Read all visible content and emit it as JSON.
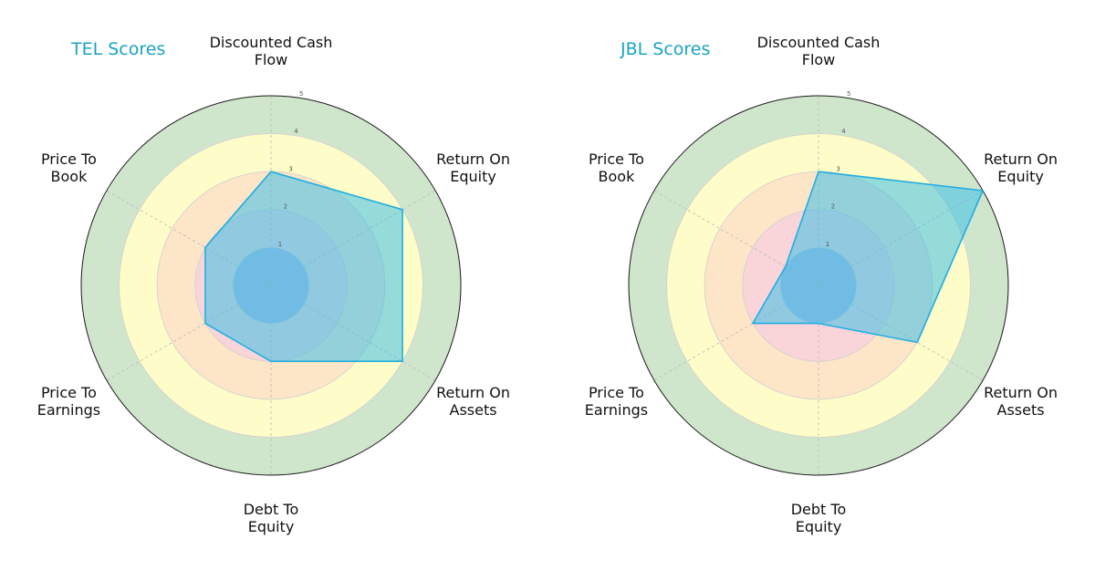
{
  "chart_data": [
    {
      "type": "radar",
      "title": "TEL Scores",
      "axes": [
        "Discounted Cash Flow",
        "Return On Equity",
        "Return On Assets",
        "Debt To Equity",
        "Price To Earnings",
        "Price To Book"
      ],
      "axis_label_lines": [
        [
          "Discounted Cash",
          "Flow"
        ],
        [
          "Return On",
          "Equity"
        ],
        [
          "Return On",
          "Assets"
        ],
        [
          "Debt To",
          "Equity"
        ],
        [
          "Price To",
          "Earnings"
        ],
        [
          "Price To",
          "Book"
        ]
      ],
      "values": [
        3,
        4,
        4,
        2,
        2,
        2
      ],
      "rlim": [
        0,
        5
      ],
      "ticks": [
        "1",
        "2",
        "3",
        "4",
        "5"
      ],
      "grid": true,
      "fill_color": "#3cc0e8",
      "line_color": "#22aee0"
    },
    {
      "type": "radar",
      "title": "JBL Scores",
      "axes": [
        "Discounted Cash Flow",
        "Return On Equity",
        "Return On Assets",
        "Debt To Equity",
        "Price To Earnings",
        "Price To Book"
      ],
      "axis_label_lines": [
        [
          "Discounted Cash",
          "Flow"
        ],
        [
          "Return On",
          "Equity"
        ],
        [
          "Return On",
          "Assets"
        ],
        [
          "Debt To",
          "Equity"
        ],
        [
          "Price To",
          "Earnings"
        ],
        [
          "Price To",
          "Book"
        ]
      ],
      "values": [
        3,
        5,
        3,
        1,
        2,
        1
      ],
      "rlim": [
        0,
        5
      ],
      "ticks": [
        "1",
        "2",
        "3",
        "4",
        "5"
      ],
      "grid": true,
      "fill_color": "#3cc0e8",
      "line_color": "#22aee0"
    }
  ],
  "band_colors": [
    "#b0b8e0",
    "#f9d4d8",
    "#fde5c8",
    "#fefcc8",
    "#d0e6cc"
  ]
}
